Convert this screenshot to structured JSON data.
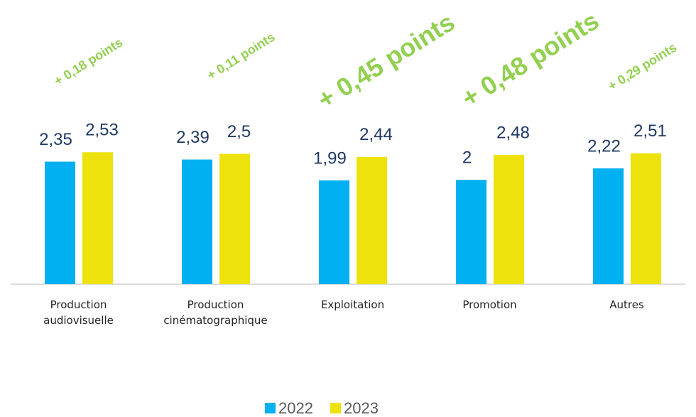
{
  "chart_data": {
    "type": "bar",
    "categories": [
      "Production audiovisuelle",
      "Production cinématographique",
      "Exploitation",
      "Promotion",
      "Autres"
    ],
    "series": [
      {
        "name": "2022",
        "color": "#00b0f0",
        "values": [
          2.35,
          2.39,
          1.99,
          2,
          2.22
        ],
        "value_labels": [
          "2,35",
          "2,39",
          "1,99",
          "2",
          "2,22"
        ]
      },
      {
        "name": "2023",
        "color": "#ede20c",
        "values": [
          2.53,
          2.5,
          2.44,
          2.48,
          2.51
        ],
        "value_labels": [
          "2,53",
          "2,5",
          "2,44",
          "2,48",
          "2,51"
        ]
      }
    ],
    "annotations": [
      "+ 0,18 points",
      "+ 0,11 points",
      "+ 0,45 points",
      "+ 0,48 points",
      "+ 0,29 points"
    ],
    "annotation_color": "#92d050",
    "legend": "bottom"
  }
}
